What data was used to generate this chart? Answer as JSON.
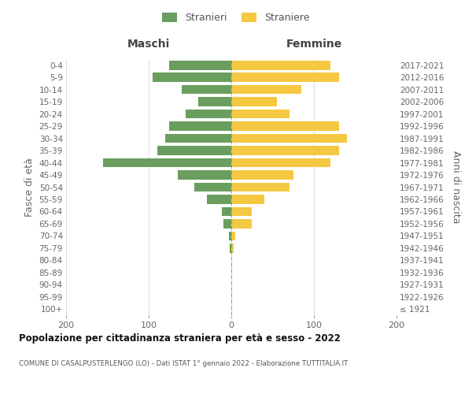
{
  "age_groups": [
    "100+",
    "95-99",
    "90-94",
    "85-89",
    "80-84",
    "75-79",
    "70-74",
    "65-69",
    "60-64",
    "55-59",
    "50-54",
    "45-49",
    "40-44",
    "35-39",
    "30-34",
    "25-29",
    "20-24",
    "15-19",
    "10-14",
    "5-9",
    "0-4"
  ],
  "birth_years": [
    "≤ 1921",
    "1922-1926",
    "1927-1931",
    "1932-1936",
    "1937-1941",
    "1942-1946",
    "1947-1951",
    "1952-1956",
    "1957-1961",
    "1962-1966",
    "1967-1971",
    "1972-1976",
    "1977-1981",
    "1982-1986",
    "1987-1991",
    "1992-1996",
    "1997-2001",
    "2002-2006",
    "2007-2011",
    "2012-2016",
    "2017-2021"
  ],
  "maschi": [
    0,
    0,
    0,
    0,
    0,
    2,
    3,
    10,
    11,
    30,
    45,
    65,
    155,
    90,
    80,
    75,
    55,
    40,
    60,
    95,
    75
  ],
  "femmine": [
    0,
    0,
    0,
    0,
    0,
    3,
    5,
    25,
    25,
    40,
    70,
    75,
    120,
    130,
    140,
    130,
    70,
    55,
    85,
    130,
    120
  ],
  "male_color": "#6a9e5e",
  "female_color": "#f5c842",
  "title": "Popolazione per cittadinanza straniera per età e sesso - 2022",
  "subtitle": "COMUNE DI CASALPUSTERLENGO (LO) - Dati ISTAT 1° gennaio 2022 - Elaborazione TUTTITALIA.IT",
  "ylabel_left": "Fasce di età",
  "ylabel_right": "Anni di nascita",
  "xlabel_left": "Maschi",
  "xlabel_right": "Femmine",
  "legend_male": "Stranieri",
  "legend_female": "Straniere",
  "xlim": 200,
  "background_color": "#ffffff",
  "grid_color": "#cccccc"
}
